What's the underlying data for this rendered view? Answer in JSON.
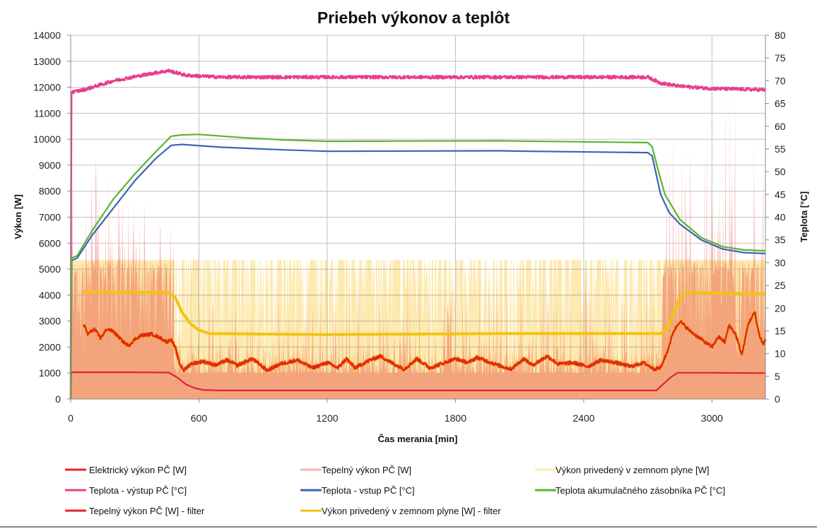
{
  "chart_data": {
    "type": "line",
    "title": "Priebeh výkonov a teplôt",
    "xlabel": "Čas merania [min]",
    "ylabel_left": "Výkon [W]",
    "ylabel_right": "Teplota [°C]",
    "xlim": [
      0,
      3250
    ],
    "ylim_left": [
      0,
      14000
    ],
    "ylim_right": [
      0,
      80
    ],
    "x_ticks": [
      0,
      600,
      1200,
      1800,
      2400,
      3000
    ],
    "x_tick_labels": [
      "0",
      "600",
      "1200",
      "1800",
      "2400",
      "3000"
    ],
    "y_left_ticks": [
      "0",
      "1000",
      "2000",
      "3000",
      "4000",
      "5000",
      "6000",
      "7000",
      "8000",
      "9000",
      "10000",
      "11000",
      "12000",
      "13000",
      "14000"
    ],
    "y_right_ticks": [
      "0",
      "5",
      "10",
      "15",
      "20",
      "25",
      "30",
      "35",
      "40",
      "45",
      "50",
      "55",
      "60",
      "65",
      "70",
      "75",
      "80"
    ],
    "grid": true,
    "legend_position": "bottom",
    "series": [
      {
        "name": "Elektrický výkon PČ [W]",
        "axis": "left",
        "color": "#e3242b",
        "style": "line",
        "points": [
          [
            0,
            0
          ],
          [
            3,
            1030
          ],
          [
            100,
            1030
          ],
          [
            300,
            1030
          ],
          [
            460,
            1020
          ],
          [
            500,
            820
          ],
          [
            540,
            560
          ],
          [
            580,
            420
          ],
          [
            620,
            350
          ],
          [
            700,
            330
          ],
          [
            1200,
            330
          ],
          [
            2000,
            330
          ],
          [
            2740,
            330
          ],
          [
            2770,
            560
          ],
          [
            2810,
            860
          ],
          [
            2840,
            1010
          ],
          [
            3000,
            1010
          ],
          [
            3250,
            1000
          ]
        ]
      },
      {
        "name": "Tepelný výkon PČ [W]",
        "axis": "left",
        "color": "#f6b3b3",
        "style": "spiky-area",
        "base": [
          [
            0,
            1550
          ],
          [
            480,
            1550
          ],
          [
            490,
            1000
          ],
          [
            2760,
            1000
          ],
          [
            2800,
            1600
          ],
          [
            3250,
            1600
          ]
        ],
        "peaks": [
          [
            0,
            10500
          ],
          [
            100,
            9500
          ],
          [
            300,
            8000
          ],
          [
            480,
            7000
          ],
          [
            520,
            5500
          ],
          [
            1200,
            5000
          ],
          [
            2100,
            6000
          ],
          [
            2700,
            5500
          ],
          [
            2760,
            9000
          ],
          [
            2850,
            11500
          ],
          [
            3100,
            12600
          ],
          [
            3250,
            10200
          ]
        ]
      },
      {
        "name": "Výkon privedený v zemnom plyne [W]",
        "axis": "left",
        "color": "#fdeab0",
        "style": "dipping-area",
        "level": [
          [
            0,
            0
          ],
          [
            6,
            5350
          ],
          [
            3250,
            5350
          ]
        ]
      },
      {
        "name": "Teplota - výstup PČ [°C]",
        "axis": "right",
        "color": "#e83e8c",
        "style": "noisy-line",
        "points": [
          [
            0,
            0
          ],
          [
            3,
            67.5
          ],
          [
            60,
            68
          ],
          [
            200,
            70
          ],
          [
            400,
            71.8
          ],
          [
            460,
            72.2
          ],
          [
            540,
            71.2
          ],
          [
            700,
            70.8
          ],
          [
            1200,
            70.8
          ],
          [
            2100,
            70.8
          ],
          [
            2700,
            70.8
          ],
          [
            2760,
            69.5
          ],
          [
            2850,
            68.8
          ],
          [
            3000,
            68.3
          ],
          [
            3250,
            68
          ]
        ]
      },
      {
        "name": "Teplota - vstup PČ [°C]",
        "axis": "right",
        "color": "#3a63b8",
        "style": "line",
        "points": [
          [
            0,
            0
          ],
          [
            5,
            30.5
          ],
          [
            30,
            31
          ],
          [
            100,
            36
          ],
          [
            200,
            42
          ],
          [
            300,
            48
          ],
          [
            400,
            53
          ],
          [
            470,
            55.8
          ],
          [
            520,
            56
          ],
          [
            700,
            55.4
          ],
          [
            1000,
            54.8
          ],
          [
            1200,
            54.5
          ],
          [
            2000,
            54.6
          ],
          [
            2150,
            54.5
          ],
          [
            2700,
            54.2
          ],
          [
            2720,
            53.5
          ],
          [
            2760,
            45
          ],
          [
            2800,
            41
          ],
          [
            2850,
            38.5
          ],
          [
            2950,
            35
          ],
          [
            3050,
            33
          ],
          [
            3150,
            32.2
          ],
          [
            3250,
            32
          ]
        ]
      },
      {
        "name": "Teplota akumulačného zásobníka PČ [°C]",
        "axis": "right",
        "color": "#5ab52e",
        "style": "line",
        "points": [
          [
            0,
            0
          ],
          [
            5,
            31
          ],
          [
            30,
            31.5
          ],
          [
            100,
            37
          ],
          [
            200,
            44
          ],
          [
            300,
            49.5
          ],
          [
            400,
            54.5
          ],
          [
            470,
            57.8
          ],
          [
            520,
            58.1
          ],
          [
            600,
            58.2
          ],
          [
            800,
            57.5
          ],
          [
            1000,
            57
          ],
          [
            1200,
            56.7
          ],
          [
            2000,
            56.8
          ],
          [
            2700,
            56.4
          ],
          [
            2720,
            55.5
          ],
          [
            2750,
            50
          ],
          [
            2780,
            45
          ],
          [
            2850,
            39.5
          ],
          [
            2950,
            35.5
          ],
          [
            3050,
            33.5
          ],
          [
            3150,
            32.8
          ],
          [
            3250,
            32.6
          ]
        ]
      },
      {
        "name": "Tepelný výkon PČ [W] - filter",
        "axis": "left",
        "color": "#e3242b",
        "style": "noisy-line",
        "points": [
          [
            60,
            2900
          ],
          [
            80,
            2500
          ],
          [
            110,
            2700
          ],
          [
            140,
            2350
          ],
          [
            170,
            2700
          ],
          [
            200,
            2600
          ],
          [
            240,
            2250
          ],
          [
            270,
            2050
          ],
          [
            300,
            2300
          ],
          [
            330,
            2450
          ],
          [
            380,
            2500
          ],
          [
            420,
            2350
          ],
          [
            450,
            2200
          ],
          [
            470,
            2300
          ],
          [
            490,
            1950
          ],
          [
            510,
            1350
          ],
          [
            530,
            1100
          ],
          [
            560,
            1350
          ],
          [
            620,
            1450
          ],
          [
            680,
            1300
          ],
          [
            730,
            1500
          ],
          [
            780,
            1300
          ],
          [
            850,
            1550
          ],
          [
            920,
            1100
          ],
          [
            980,
            1350
          ],
          [
            1060,
            1500
          ],
          [
            1130,
            1200
          ],
          [
            1200,
            1400
          ],
          [
            1250,
            1200
          ],
          [
            1290,
            1550
          ],
          [
            1330,
            1200
          ],
          [
            1400,
            1500
          ],
          [
            1450,
            1650
          ],
          [
            1500,
            1400
          ],
          [
            1560,
            1150
          ],
          [
            1620,
            1550
          ],
          [
            1680,
            1200
          ],
          [
            1750,
            1400
          ],
          [
            1800,
            1550
          ],
          [
            1860,
            1400
          ],
          [
            1900,
            1600
          ],
          [
            1950,
            1450
          ],
          [
            2000,
            1300
          ],
          [
            2060,
            1150
          ],
          [
            2120,
            1550
          ],
          [
            2160,
            1300
          ],
          [
            2230,
            1650
          ],
          [
            2280,
            1350
          ],
          [
            2350,
            1400
          ],
          [
            2420,
            1250
          ],
          [
            2480,
            1500
          ],
          [
            2550,
            1400
          ],
          [
            2620,
            1250
          ],
          [
            2680,
            1400
          ],
          [
            2730,
            1150
          ],
          [
            2760,
            1200
          ],
          [
            2790,
            1800
          ],
          [
            2820,
            2600
          ],
          [
            2850,
            3000
          ],
          [
            2900,
            2600
          ],
          [
            2950,
            2300
          ],
          [
            3000,
            2000
          ],
          [
            3030,
            2400
          ],
          [
            3060,
            2200
          ],
          [
            3080,
            2850
          ],
          [
            3110,
            2500
          ],
          [
            3140,
            1700
          ],
          [
            3170,
            2900
          ],
          [
            3200,
            3350
          ],
          [
            3220,
            2500
          ],
          [
            3240,
            2100
          ],
          [
            3250,
            2300
          ]
        ]
      },
      {
        "name": "Výkon privedený v zemnom plyne [W] - filter",
        "axis": "left",
        "color": "#f1c40f",
        "style": "line",
        "points": [
          [
            60,
            4120
          ],
          [
            200,
            4110
          ],
          [
            460,
            4100
          ],
          [
            490,
            3900
          ],
          [
            520,
            3350
          ],
          [
            560,
            2900
          ],
          [
            600,
            2650
          ],
          [
            650,
            2520
          ],
          [
            1200,
            2480
          ],
          [
            2000,
            2520
          ],
          [
            2760,
            2520
          ],
          [
            2790,
            2700
          ],
          [
            2820,
            3300
          ],
          [
            2850,
            3900
          ],
          [
            2880,
            4100
          ],
          [
            3000,
            4080
          ],
          [
            3250,
            4050
          ]
        ]
      }
    ]
  }
}
